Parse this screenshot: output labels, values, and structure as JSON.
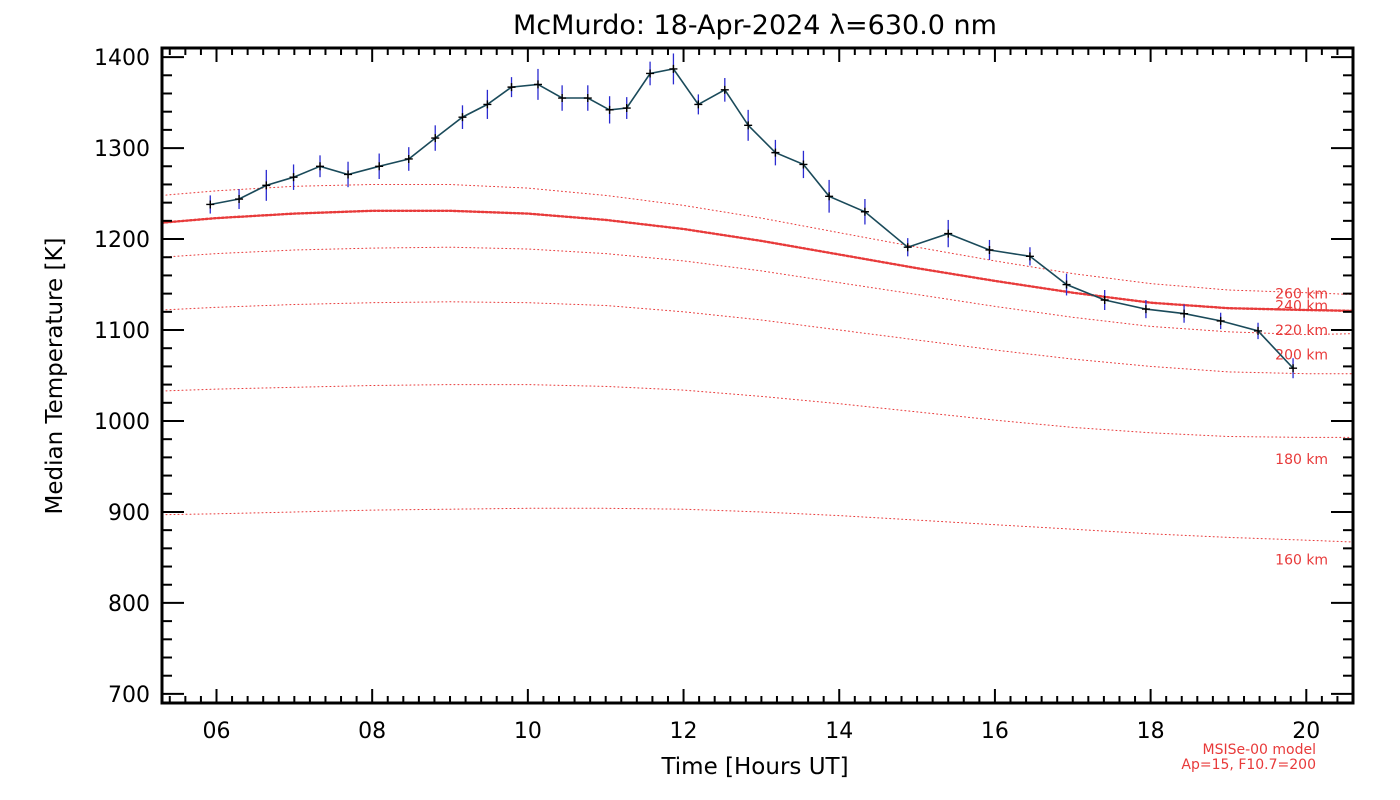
{
  "chart_data": {
    "type": "line",
    "title": "McMurdo: 18-Apr-2024 λ=630.0 nm",
    "xlabel": "Time [Hours UT]",
    "ylabel": "Median Temperature [K]",
    "xlim": [
      5.3,
      20.6
    ],
    "ylim": [
      690,
      1410
    ],
    "xticks": [
      6,
      8,
      10,
      12,
      14,
      16,
      18,
      20
    ],
    "xtick_labels": [
      "06",
      "08",
      "10",
      "12",
      "14",
      "16",
      "18",
      "20"
    ],
    "yticks": [
      700,
      800,
      900,
      1000,
      1100,
      1200,
      1300,
      1400
    ],
    "ytick_labels": [
      "700",
      "800",
      "900",
      "1000",
      "1100",
      "1200",
      "1300",
      "1400"
    ],
    "grid": false,
    "series": [
      {
        "color": "#1a4a5a",
        "errorbar_color": "#2a2ad0",
        "x": [
          5.92,
          6.29,
          6.64,
          6.99,
          7.33,
          7.69,
          8.09,
          8.47,
          8.81,
          9.16,
          9.48,
          9.79,
          10.13,
          10.44,
          10.77,
          11.05,
          11.27,
          11.57,
          11.87,
          12.19,
          12.53,
          12.83,
          13.18,
          13.54,
          13.87,
          14.33,
          14.88,
          15.4,
          15.93,
          16.45,
          16.92,
          17.41,
          17.94,
          18.43,
          18.9,
          19.38,
          19.83
        ],
        "y": [
          1238,
          1244,
          1259,
          1268,
          1280,
          1271,
          1280,
          1288,
          1311,
          1334,
          1348,
          1367,
          1370,
          1355,
          1355,
          1342,
          1344,
          1382,
          1387,
          1348,
          1364,
          1325,
          1295,
          1282,
          1247,
          1230,
          1191,
          1206,
          1188,
          1181,
          1150,
          1133,
          1123,
          1118,
          1110,
          1099,
          1058
        ],
        "err": [
          10,
          11,
          17,
          14,
          12,
          14,
          14,
          13,
          14,
          13,
          16,
          11,
          17,
          14,
          14,
          15,
          12,
          13,
          17,
          11,
          13,
          17,
          14,
          15,
          18,
          14,
          10,
          15,
          11,
          10,
          12,
          11,
          10,
          10,
          9,
          9,
          11
        ]
      }
    ],
    "model": {
      "color": "#e83a3a",
      "x": [
        5.3,
        6.0,
        7.0,
        8.0,
        9.0,
        10.0,
        11.0,
        12.0,
        13.0,
        14.0,
        15.0,
        16.0,
        17.0,
        18.0,
        19.0,
        20.0,
        20.6
      ],
      "curves": [
        {
          "label": "160 km",
          "emphasis": false,
          "y": [
            897,
            898,
            900,
            902,
            903,
            904,
            904,
            903,
            900,
            896,
            891,
            886,
            881,
            876,
            872,
            869,
            867
          ]
        },
        {
          "label": "180 km",
          "emphasis": false,
          "y": [
            1033,
            1035,
            1037,
            1039,
            1040,
            1040,
            1038,
            1034,
            1027,
            1019,
            1010,
            1001,
            993,
            987,
            983,
            982,
            982
          ]
        },
        {
          "label": "200 km",
          "emphasis": false,
          "y": [
            1122,
            1125,
            1128,
            1130,
            1131,
            1130,
            1127,
            1120,
            1111,
            1100,
            1089,
            1078,
            1068,
            1060,
            1054,
            1052,
            1052
          ]
        },
        {
          "label": "220 km",
          "emphasis": false,
          "y": [
            1180,
            1184,
            1188,
            1190,
            1191,
            1189,
            1184,
            1176,
            1165,
            1152,
            1139,
            1126,
            1114,
            1104,
            1098,
            1095,
            1096
          ]
        },
        {
          "label": "240 km",
          "emphasis": true,
          "y": [
            1218,
            1223,
            1228,
            1231,
            1231,
            1228,
            1221,
            1211,
            1198,
            1183,
            1168,
            1154,
            1141,
            1130,
            1124,
            1122,
            1121
          ]
        },
        {
          "label": "260 km",
          "emphasis": false,
          "y": [
            1248,
            1253,
            1258,
            1260,
            1260,
            1256,
            1248,
            1237,
            1223,
            1207,
            1191,
            1176,
            1162,
            1151,
            1144,
            1141,
            1139
          ]
        }
      ],
      "label_x": 19.6,
      "label_y": [
        848,
        958,
        1073,
        1100,
        1127,
        1140
      ]
    },
    "annotation": [
      "MSISe-00 model",
      "Ap=15, F10.7=200"
    ]
  }
}
